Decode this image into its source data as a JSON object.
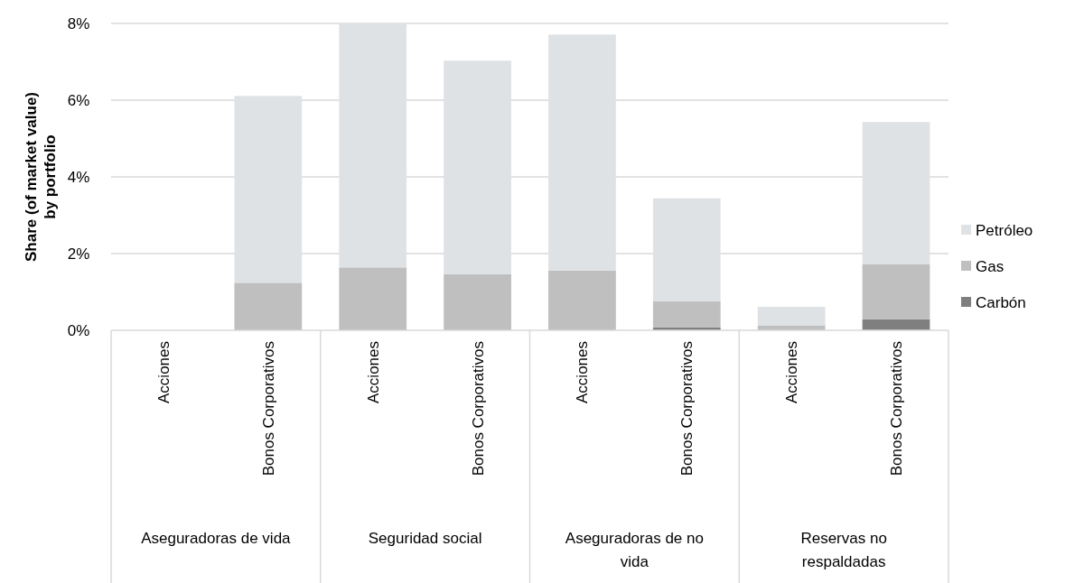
{
  "chart_data": {
    "type": "bar",
    "stacked": true,
    "ylabel": "Share (of market value) by portfolio",
    "categories": [
      "Acciones",
      "Bonos Corporativos",
      "Acciones",
      "Bonos Corporativos",
      "Acciones",
      "Bonos Corporativos",
      "Acciones",
      "Bonos Corporativos"
    ],
    "annotations": [
      "Aseguradoras de vida",
      "Seguridad social",
      "Aseguradoras de no vida",
      "Reservas no respaldadas"
    ],
    "series": [
      {
        "name": "Carbón",
        "color": "#7f7f7f",
        "values": [
          0,
          0,
          0,
          0,
          0,
          0.08,
          0,
          0.29
        ]
      },
      {
        "name": "Gas",
        "color": "#bfbfbf",
        "values": [
          0,
          1.24,
          1.64,
          1.46,
          1.56,
          0.68,
          0.13,
          1.44
        ]
      },
      {
        "name": "Petróleo",
        "color": "#dfe2e5",
        "values": [
          0,
          4.87,
          6.36,
          5.57,
          6.15,
          2.68,
          0.48,
          3.7
        ]
      }
    ],
    "ylim": [
      0,
      8
    ],
    "yticks": [
      {
        "value": 0,
        "label": "0%"
      },
      {
        "value": 2,
        "label": "2%"
      },
      {
        "value": 4,
        "label": "4%"
      },
      {
        "value": 6,
        "label": "6%"
      },
      {
        "value": 8,
        "label": "8%"
      }
    ],
    "grid": "y",
    "legend": "right"
  }
}
